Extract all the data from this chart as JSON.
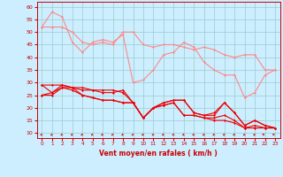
{
  "xlabel": "Vent moyen/en rafales ( km/h )",
  "xlim": [
    -0.5,
    23.5
  ],
  "ylim": [
    8,
    62
  ],
  "yticks": [
    10,
    15,
    20,
    25,
    30,
    35,
    40,
    45,
    50,
    55,
    60
  ],
  "xticks": [
    0,
    1,
    2,
    3,
    4,
    5,
    6,
    7,
    8,
    9,
    10,
    11,
    12,
    13,
    14,
    15,
    16,
    17,
    18,
    19,
    20,
    21,
    22,
    23
  ],
  "bg_color": "#cceeff",
  "grid_color": "#99cccc",
  "line_color_light": "#ff8888",
  "line_color_dark": "#ee0000",
  "series_light": [
    [
      52,
      52,
      52,
      50,
      46,
      45,
      46,
      45,
      50,
      50,
      45,
      44,
      45,
      45,
      44,
      43,
      44,
      43,
      41,
      40,
      41,
      41,
      35,
      35
    ],
    [
      52,
      58,
      56,
      46,
      42,
      46,
      47,
      46,
      49,
      30,
      31,
      35,
      41,
      42,
      46,
      44,
      38,
      35,
      33,
      33,
      24,
      26,
      33,
      35
    ]
  ],
  "series_dark": [
    [
      29,
      26,
      29,
      28,
      27,
      27,
      26,
      26,
      27,
      22,
      16,
      20,
      22,
      23,
      23,
      18,
      17,
      18,
      22,
      18,
      13,
      15,
      13,
      12
    ],
    [
      29,
      29,
      29,
      28,
      28,
      27,
      27,
      27,
      26,
      22,
      16,
      20,
      22,
      23,
      23,
      18,
      17,
      17,
      22,
      18,
      13,
      15,
      13,
      12
    ],
    [
      25,
      26,
      28,
      28,
      25,
      24,
      23,
      23,
      22,
      22,
      16,
      20,
      21,
      22,
      17,
      17,
      16,
      16,
      17,
      15,
      12,
      13,
      12,
      12
    ],
    [
      25,
      25,
      28,
      27,
      25,
      24,
      23,
      23,
      22,
      22,
      16,
      20,
      21,
      22,
      17,
      17,
      16,
      15,
      15,
      14,
      12,
      12,
      12,
      12
    ]
  ]
}
